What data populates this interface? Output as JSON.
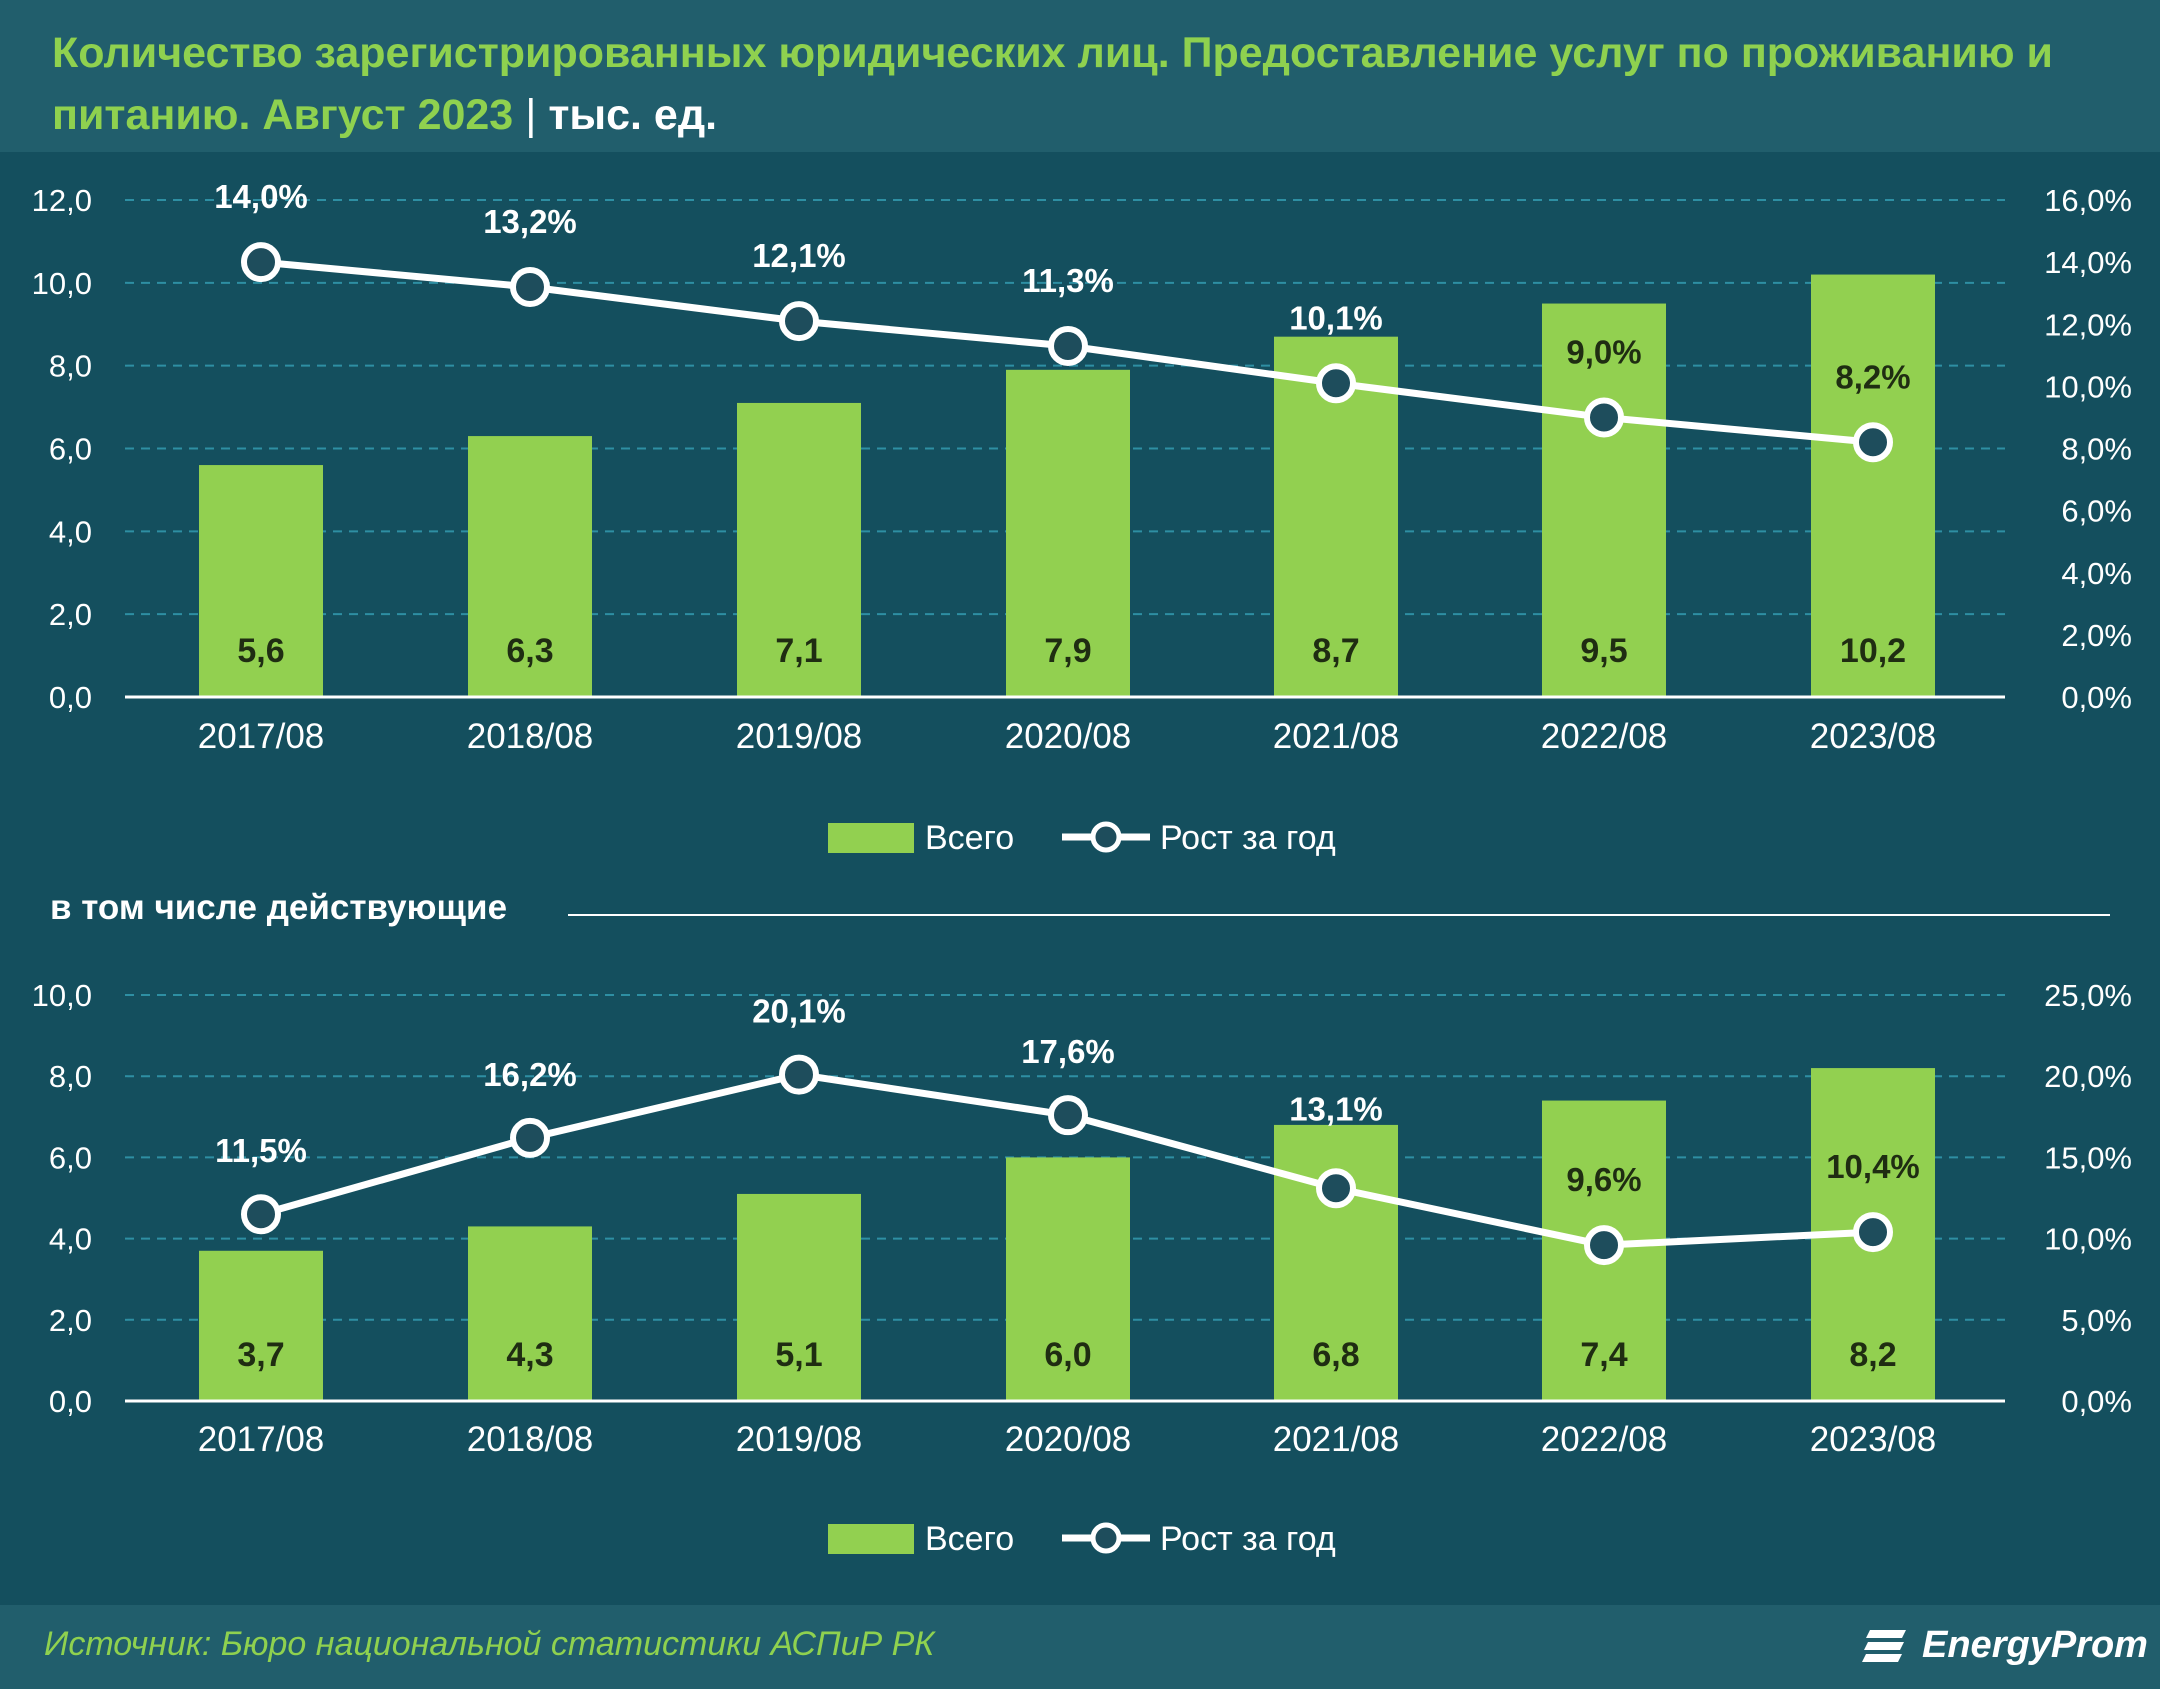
{
  "title": {
    "main": "Количество зарегистрированных юридических лиц. Предоставление услуг по проживанию и питанию. Август 2023",
    "separator": "|",
    "unit": "тыс. ед."
  },
  "subheading": "в том числе действующие",
  "source": "Источник: Бюро национальной статистики АСПиР РК",
  "logo": {
    "text": "EnergyProm",
    "icon": "energyprom-logo-icon"
  },
  "colors": {
    "background": "#144f5e",
    "header_band": "#215e6c",
    "bar": "#92d050",
    "line": "#ffffff",
    "title": "#8fd14f",
    "grid": "#2e8fa3"
  },
  "chart_data": [
    {
      "type": "bar",
      "categories": [
        "2017/08",
        "2018/08",
        "2019/08",
        "2020/08",
        "2021/08",
        "2022/08",
        "2023/08"
      ],
      "series": [
        {
          "name": "Всего",
          "type": "bar",
          "axis": "left",
          "values": [
            5.6,
            6.3,
            7.1,
            7.9,
            8.7,
            9.5,
            10.2
          ],
          "labels": [
            "5,6",
            "6,3",
            "7,1",
            "7,9",
            "8,7",
            "9,5",
            "10,2"
          ]
        },
        {
          "name": "Рост за год",
          "type": "line",
          "axis": "right",
          "values": [
            14.0,
            13.2,
            12.1,
            11.3,
            10.1,
            9.0,
            8.2
          ],
          "labels": [
            "14,0%",
            "13,2%",
            "12,1%",
            "11,3%",
            "10,1%",
            "9,0%",
            "8,2%"
          ]
        }
      ],
      "y_left": {
        "range": [
          0,
          12
        ],
        "ticks": [
          "0,0",
          "2,0",
          "4,0",
          "6,0",
          "8,0",
          "10,0",
          "12,0"
        ]
      },
      "y_right": {
        "range": [
          0,
          16
        ],
        "ticks": [
          "0,0%",
          "2,0%",
          "4,0%",
          "6,0%",
          "8,0%",
          "10,0%",
          "12,0%",
          "14,0%",
          "16,0%"
        ]
      },
      "grid": true,
      "legend_position": "bottom"
    },
    {
      "type": "bar",
      "categories": [
        "2017/08",
        "2018/08",
        "2019/08",
        "2020/08",
        "2021/08",
        "2022/08",
        "2023/08"
      ],
      "series": [
        {
          "name": "Всего",
          "type": "bar",
          "axis": "left",
          "values": [
            3.7,
            4.3,
            5.1,
            6.0,
            6.8,
            7.4,
            8.2
          ],
          "labels": [
            "3,7",
            "4,3",
            "5,1",
            "6,0",
            "6,8",
            "7,4",
            "8,2"
          ]
        },
        {
          "name": "Рост за год",
          "type": "line",
          "axis": "right",
          "values": [
            11.5,
            16.2,
            20.1,
            17.6,
            13.1,
            9.6,
            10.4
          ],
          "labels": [
            "11,5%",
            "16,2%",
            "20,1%",
            "17,6%",
            "13,1%",
            "9,6%",
            "10,4%"
          ]
        }
      ],
      "y_left": {
        "range": [
          0,
          10
        ],
        "ticks": [
          "0,0",
          "2,0",
          "4,0",
          "6,0",
          "8,0",
          "10,0"
        ]
      },
      "y_right": {
        "range": [
          0,
          25
        ],
        "ticks": [
          "0,0%",
          "5,0%",
          "10,0%",
          "15,0%",
          "20,0%",
          "25,0%"
        ]
      },
      "grid": true,
      "legend_position": "bottom"
    }
  ]
}
